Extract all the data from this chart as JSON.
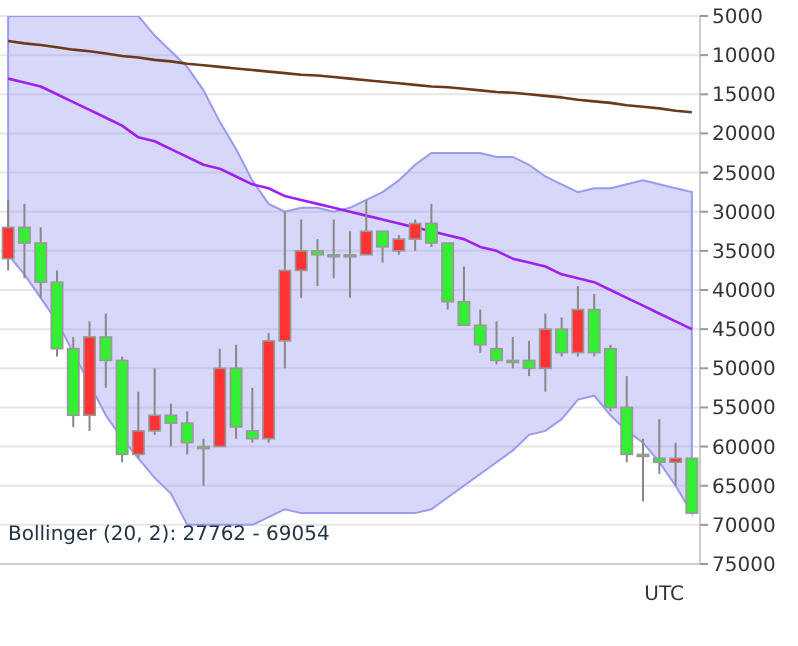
{
  "chart_data": {
    "type": "candlestick",
    "categories": [
      null,
      null,
      null,
      null,
      null,
      null,
      null,
      null,
      null,
      null,
      null,
      null,
      null,
      null,
      null,
      null,
      null,
      null,
      null,
      null,
      null,
      null,
      null,
      null,
      null,
      null,
      null,
      null,
      null,
      null,
      null,
      null,
      null,
      null,
      null,
      null,
      null,
      null,
      null,
      null,
      null,
      null,
      null
    ],
    "ohlc": [
      [
        36000,
        37500,
        28500,
        32000
      ],
      [
        32000,
        38500,
        29000,
        34000
      ],
      [
        34000,
        41000,
        32000,
        39000
      ],
      [
        39000,
        48500,
        37500,
        47500
      ],
      [
        47500,
        57500,
        46000,
        56000
      ],
      [
        56000,
        58000,
        44000,
        46000
      ],
      [
        46000,
        52500,
        43000,
        49000
      ],
      [
        49000,
        62000,
        48500,
        61000
      ],
      [
        61000,
        61500,
        53000,
        58000
      ],
      [
        58000,
        58500,
        50000,
        56000
      ],
      [
        56000,
        60000,
        54500,
        57000
      ],
      [
        57000,
        61000,
        55500,
        59500
      ],
      [
        60000,
        65000,
        59000,
        60000
      ],
      [
        60000,
        60000,
        47500,
        50000
      ],
      [
        50000,
        59000,
        47000,
        57500
      ],
      [
        58000,
        59500,
        52500,
        59000
      ],
      [
        59000,
        59500,
        45500,
        46500
      ],
      [
        46500,
        50000,
        30000,
        37500
      ],
      [
        37500,
        41000,
        31000,
        35000
      ],
      [
        35000,
        39500,
        33500,
        35500
      ],
      [
        35500,
        38500,
        31000,
        35500
      ],
      [
        35500,
        41000,
        32500,
        35500
      ],
      [
        35500,
        35500,
        28500,
        32500
      ],
      [
        32500,
        36500,
        32500,
        34500
      ],
      [
        35000,
        35500,
        33000,
        33500
      ],
      [
        33500,
        35000,
        31000,
        31500
      ],
      [
        31500,
        34500,
        29000,
        34000
      ],
      [
        34000,
        42500,
        34000,
        41500
      ],
      [
        41500,
        44500,
        37000,
        44500
      ],
      [
        44500,
        48000,
        42500,
        47000
      ],
      [
        47500,
        49500,
        44000,
        49000
      ],
      [
        49000,
        50000,
        46000,
        49000
      ],
      [
        49000,
        51000,
        46500,
        50000
      ],
      [
        50000,
        53000,
        43000,
        45000
      ],
      [
        45000,
        48500,
        43500,
        48000
      ],
      [
        48000,
        48500,
        39500,
        42500
      ],
      [
        42500,
        48500,
        40500,
        48000
      ],
      [
        47500,
        55500,
        47000,
        55000
      ],
      [
        55000,
        62000,
        51000,
        61000
      ],
      [
        61000,
        67000,
        59000,
        61000
      ],
      [
        61500,
        63500,
        56500,
        62000
      ],
      [
        62000,
        65000,
        59500,
        61500
      ],
      [
        61500,
        68500,
        61500,
        68500
      ]
    ],
    "colors": [
      "#ff3333",
      "#33ee33",
      "#33ee33",
      "#33ee33",
      "#33ee33",
      "#ff3333",
      "#33ee33",
      "#33ee33",
      "#ff3333",
      "#ff3333",
      "#33ee33",
      "#33ee33",
      "#33ee33",
      "#ff3333",
      "#33ee33",
      "#33ee33",
      "#ff3333",
      "#ff3333",
      "#ff3333",
      "#33ee33",
      "#33ee33",
      "#33ee33",
      "#ff3333",
      "#33ee33",
      "#ff3333",
      "#ff3333",
      "#33ee33",
      "#33ee33",
      "#33ee33",
      "#33ee33",
      "#33ee33",
      "#33ee33",
      "#33ee33",
      "#ff3333",
      "#33ee33",
      "#ff3333",
      "#33ee33",
      "#33ee33",
      "#33ee33",
      "#33ee33",
      "#33ee33",
      "#ff3333",
      "#33ee33"
    ],
    "series": [
      {
        "type": "line",
        "color": "#a020f0",
        "values": [
          13000,
          13500,
          14000,
          15000,
          16000,
          17000,
          18000,
          19000,
          20500,
          21000,
          22000,
          23000,
          24000,
          24500,
          25500,
          26500,
          27000,
          28000,
          28500,
          29000,
          29500,
          30000,
          30500,
          31000,
          31500,
          32000,
          32500,
          33000,
          33500,
          34500,
          35000,
          36000,
          36500,
          37000,
          38000,
          38500,
          39000,
          40000,
          41000,
          42000,
          43000,
          44000,
          45000
        ],
        "lower": [
          5000,
          5000,
          5000,
          5000,
          5000,
          5000,
          5000,
          5000,
          5000,
          7500,
          9500,
          11500,
          14500,
          18500,
          22000,
          26000,
          29000,
          30000,
          29500,
          29500,
          30000,
          29500,
          28500,
          27500,
          26000,
          24000,
          22500,
          22500,
          22500,
          22500,
          23000,
          23000,
          24000,
          25500,
          26500,
          27500,
          27000,
          27000,
          26500,
          26000,
          26500,
          27000,
          27500
        ],
        "upper": [
          35500,
          38000,
          41000,
          44000,
          48000,
          52000,
          56000,
          59000,
          61500,
          64000,
          66000,
          70000,
          70000,
          70000,
          70000,
          70000,
          69000,
          68000,
          68500,
          68500,
          68500,
          68500,
          68500,
          68500,
          68500,
          68500,
          68000,
          66500,
          65000,
          63500,
          62000,
          60500,
          58500,
          58000,
          56500,
          54000,
          53500,
          56000,
          58000,
          59500,
          62000,
          65000,
          68500
        ]
      },
      {
        "type": "line",
        "color": "#6b3a1a",
        "values": [
          8200,
          8500,
          8700,
          9000,
          9300,
          9500,
          9800,
          10100,
          10300,
          10600,
          10800,
          11100,
          11300,
          11500,
          11700,
          11900,
          12100,
          12300,
          12500,
          12600,
          12800,
          13000,
          13200,
          13400,
          13600,
          13800,
          14000,
          14100,
          14300,
          14500,
          14700,
          14800,
          15000,
          15200,
          15400,
          15700,
          15900,
          16100,
          16400,
          16600,
          16800,
          17100,
          17300
        ]
      }
    ],
    "ylim": [
      75000,
      5000
    ],
    "yticks": [
      5000,
      10000,
      15000,
      20000,
      25000,
      30000,
      35000,
      40000,
      45000,
      50000,
      55000,
      60000,
      65000,
      70000,
      75000
    ],
    "grid": "y",
    "annotations": [
      "Bollinger (20, 2): 27762 - 69054",
      "UTC"
    ]
  }
}
